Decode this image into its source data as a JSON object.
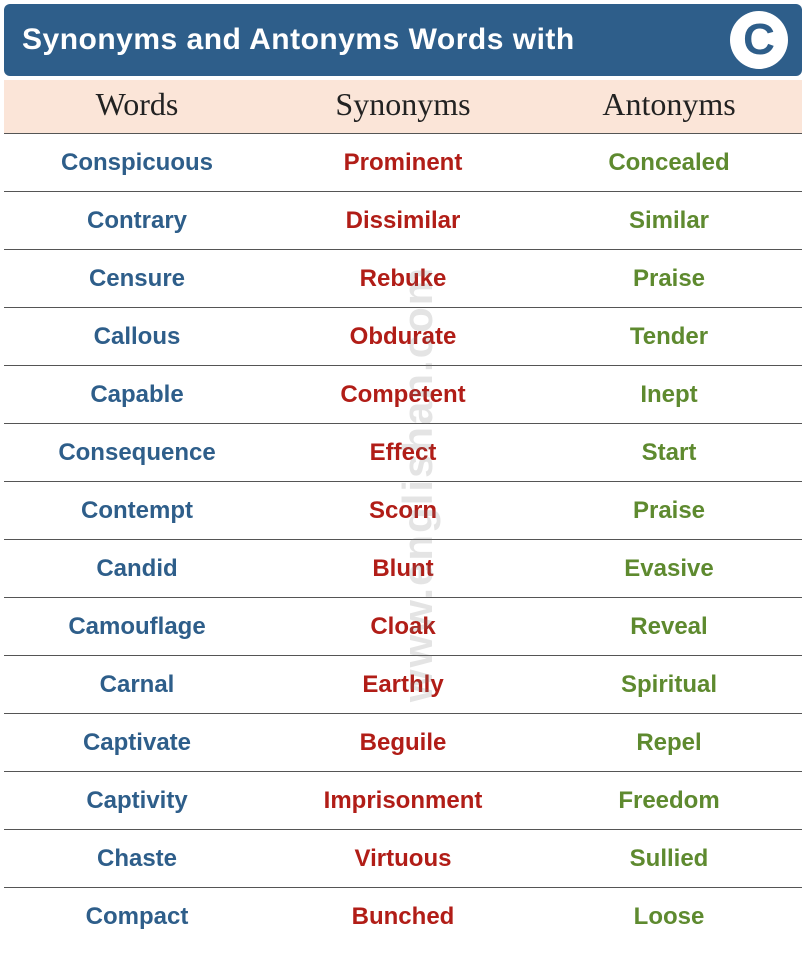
{
  "header": {
    "title": "Synonyms and Antonyms Words with",
    "letter": "C",
    "bg_color": "#2e5e8a",
    "text_color": "#ffffff"
  },
  "subheader": {
    "columns": [
      "Words",
      "Synonyms",
      "Antonyms"
    ],
    "bg_color": "#fbe5d8"
  },
  "colors": {
    "word": "#2e5e8a",
    "synonym": "#b11d17",
    "antonym": "#5e8a2f",
    "border": "#555555"
  },
  "watermark": "www.englishan.com",
  "rows": [
    {
      "word": "Conspicuous",
      "synonym": "Prominent",
      "antonym": "Concealed"
    },
    {
      "word": "Contrary",
      "synonym": "Dissimilar",
      "antonym": "Similar"
    },
    {
      "word": "Censure",
      "synonym": "Rebuke",
      "antonym": "Praise"
    },
    {
      "word": "Callous",
      "synonym": "Obdurate",
      "antonym": "Tender"
    },
    {
      "word": "Capable",
      "synonym": "Competent",
      "antonym": "Inept"
    },
    {
      "word": "Consequence",
      "synonym": "Effect",
      "antonym": "Start"
    },
    {
      "word": "Contempt",
      "synonym": "Scorn",
      "antonym": "Praise"
    },
    {
      "word": "Candid",
      "synonym": "Blunt",
      "antonym": "Evasive"
    },
    {
      "word": "Camouflage",
      "synonym": "Cloak",
      "antonym": "Reveal"
    },
    {
      "word": "Carnal",
      "synonym": "Earthly",
      "antonym": "Spiritual"
    },
    {
      "word": "Captivate",
      "synonym": "Beguile",
      "antonym": "Repel"
    },
    {
      "word": "Captivity",
      "synonym": "Imprisonment",
      "antonym": "Freedom"
    },
    {
      "word": "Chaste",
      "synonym": "Virtuous",
      "antonym": "Sullied"
    },
    {
      "word": "Compact",
      "synonym": "Bunched",
      "antonym": "Loose"
    }
  ]
}
